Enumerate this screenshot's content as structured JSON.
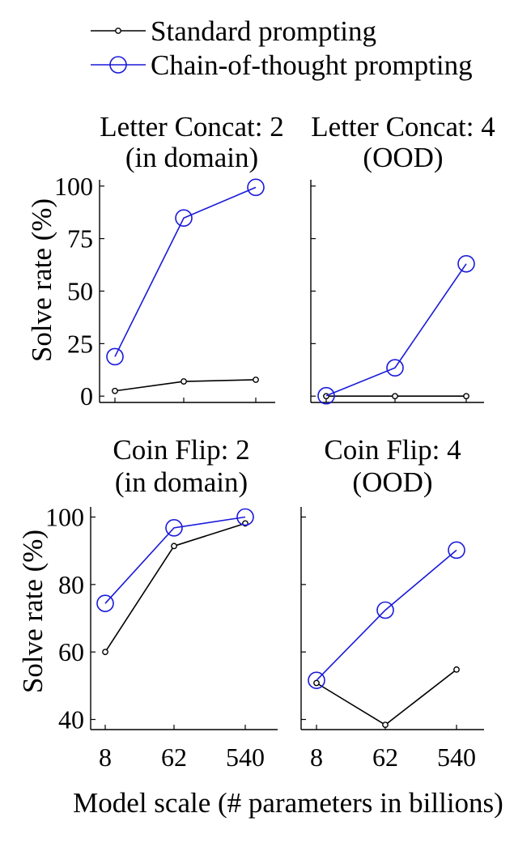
{
  "legend": {
    "standard": "Standard prompting",
    "cot": "Chain-of-thought prompting"
  },
  "colors": {
    "standard": "#000000",
    "cot": "#1a1adb",
    "axis": "#000000"
  },
  "x_axis_label": "Model scale (# parameters in billions)",
  "y_axis_label": "Solve rate (%)",
  "chart_data": [
    {
      "type": "line",
      "title_lines": [
        "Letter Concat: 2",
        "(in domain)"
      ],
      "x": [
        "8",
        "62",
        "540"
      ],
      "x_ticks_shown": false,
      "y_ticks": [
        0,
        25,
        50,
        75,
        100
      ],
      "y_ticks_shown": true,
      "ylim": [
        -3,
        103
      ],
      "series": [
        {
          "name": "Standard prompting",
          "values": [
            2.5,
            7,
            7.8
          ]
        },
        {
          "name": "Chain-of-thought prompting",
          "values": [
            18.8,
            84.8,
            99.4
          ]
        }
      ]
    },
    {
      "type": "line",
      "title_lines": [
        "Letter Concat: 4",
        "(OOD)"
      ],
      "x": [
        "8",
        "62",
        "540"
      ],
      "x_ticks_shown": false,
      "y_ticks": [
        0,
        25,
        50,
        75,
        100
      ],
      "y_ticks_shown": false,
      "ylim": [
        -3,
        103
      ],
      "series": [
        {
          "name": "Standard prompting",
          "values": [
            0,
            0,
            0
          ]
        },
        {
          "name": "Chain-of-thought prompting",
          "values": [
            0.2,
            13.5,
            63.0
          ]
        }
      ]
    },
    {
      "type": "line",
      "title_lines": [
        "Coin Flip: 2",
        "(in domain)"
      ],
      "x": [
        "8",
        "62",
        "540"
      ],
      "x_ticks_shown": true,
      "y_ticks": [
        40,
        60,
        80,
        100
      ],
      "y_ticks_shown": true,
      "ylim": [
        37,
        103
      ],
      "series": [
        {
          "name": "Standard prompting",
          "values": [
            60.0,
            91.4,
            98.1
          ]
        },
        {
          "name": "Chain-of-thought prompting",
          "values": [
            74.4,
            96.8,
            100.0
          ]
        }
      ]
    },
    {
      "type": "line",
      "title_lines": [
        "Coin Flip: 4",
        "(OOD)"
      ],
      "x": [
        "8",
        "62",
        "540"
      ],
      "x_ticks_shown": true,
      "y_ticks": [
        40,
        60,
        80,
        100
      ],
      "y_ticks_shown": false,
      "ylim": [
        37,
        103
      ],
      "series": [
        {
          "name": "Standard prompting",
          "values": [
            50.8,
            38.4,
            54.8
          ]
        },
        {
          "name": "Chain-of-thought prompting",
          "values": [
            51.6,
            72.4,
            90.2
          ]
        }
      ]
    }
  ]
}
